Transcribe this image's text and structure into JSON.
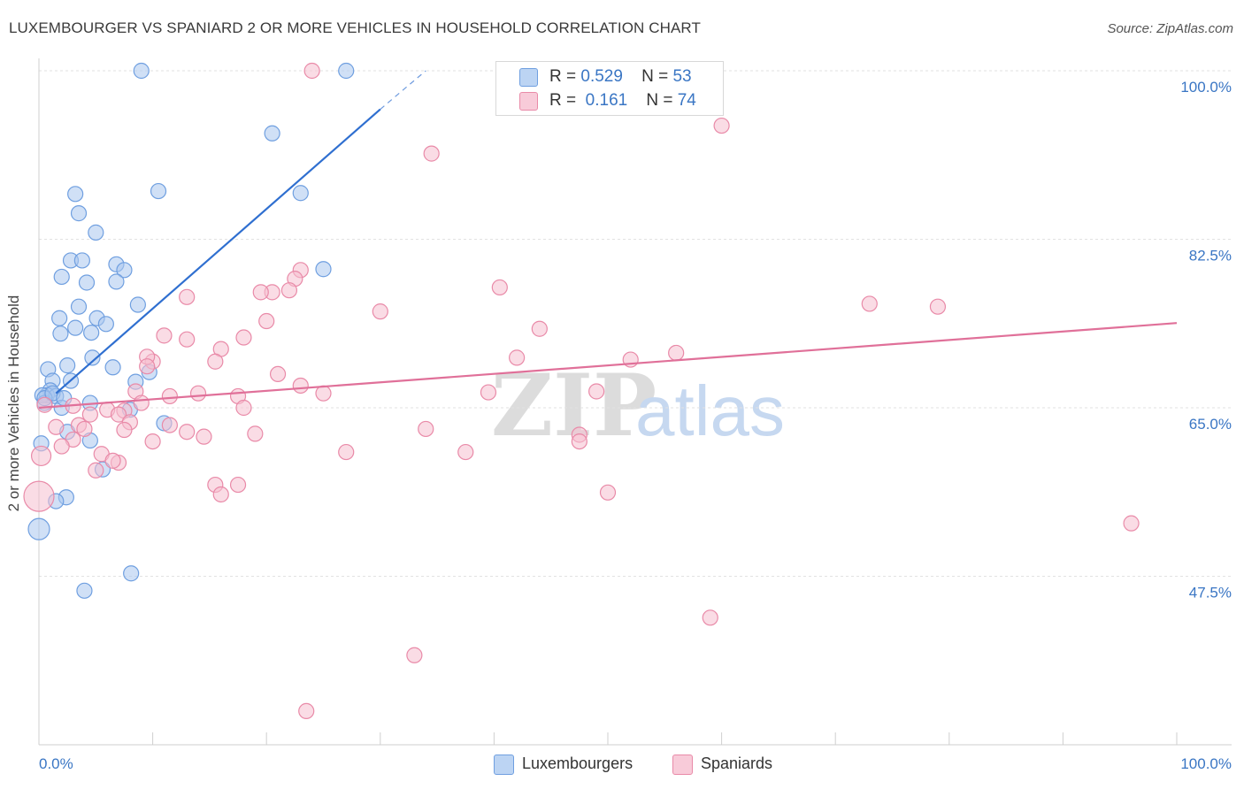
{
  "chart_data": {
    "type": "scatter",
    "title": "LUXEMBOURGER VS SPANIARD 2 OR MORE VEHICLES IN HOUSEHOLD CORRELATION CHART",
    "source": "Source: ZipAtlas.com",
    "xlabel": "",
    "ylabel": "2 or more Vehicles in Household",
    "xlim": [
      0,
      100
    ],
    "ylim": [
      30,
      100
    ],
    "x_tick_labels": [
      "0.0%",
      "100.0%"
    ],
    "y_ticks": [
      {
        "value": 100.0,
        "label": "100.0%"
      },
      {
        "value": 82.5,
        "label": "82.5%"
      },
      {
        "value": 65.0,
        "label": "65.0%"
      },
      {
        "value": 47.5,
        "label": "47.5%"
      }
    ],
    "grid": true,
    "watermark": "ZIPatlas",
    "legend": {
      "position": "top-center",
      "entries": [
        {
          "r_label": "R =",
          "r": "0.529",
          "n_label": "N =",
          "n": "53"
        },
        {
          "r_label": "R =",
          "r": "0.161",
          "n_label": "N =",
          "n": "74"
        }
      ]
    },
    "series": [
      {
        "name": "Luxembourgers",
        "color": "#6f9fe0",
        "fill": "#a9c6ef",
        "line_color": "#2f6fd0",
        "trend": {
          "x": [
            1.5,
            30.0
          ],
          "y": [
            66.5,
            96.0
          ],
          "dash_to": [
            34.0,
            100.0
          ]
        },
        "points": [
          [
            9.0,
            100
          ],
          [
            27.0,
            100
          ],
          [
            20.5,
            93.5
          ],
          [
            10.5,
            87.5
          ],
          [
            23.0,
            87.3
          ],
          [
            3.2,
            87.2
          ],
          [
            3.5,
            85.2
          ],
          [
            5.0,
            83.2
          ],
          [
            2.8,
            80.3
          ],
          [
            3.8,
            80.3
          ],
          [
            6.8,
            79.9
          ],
          [
            7.5,
            79.3
          ],
          [
            25.0,
            79.4
          ],
          [
            2.0,
            78.6
          ],
          [
            4.2,
            78.0
          ],
          [
            6.8,
            78.1
          ],
          [
            8.7,
            75.7
          ],
          [
            3.5,
            75.5
          ],
          [
            1.8,
            74.3
          ],
          [
            5.1,
            74.3
          ],
          [
            3.2,
            73.3
          ],
          [
            5.9,
            73.7
          ],
          [
            1.9,
            72.7
          ],
          [
            4.6,
            72.8
          ],
          [
            4.7,
            70.2
          ],
          [
            2.5,
            69.4
          ],
          [
            6.5,
            69.2
          ],
          [
            0.8,
            69.0
          ],
          [
            9.7,
            68.7
          ],
          [
            1.2,
            67.8
          ],
          [
            2.8,
            67.8
          ],
          [
            8.5,
            67.7
          ],
          [
            1.0,
            66.8
          ],
          [
            0.7,
            66.3
          ],
          [
            0.3,
            66.3
          ],
          [
            1.5,
            66.2
          ],
          [
            0.5,
            65.5
          ],
          [
            4.5,
            65.5
          ],
          [
            2.0,
            65.0
          ],
          [
            8.0,
            64.8
          ],
          [
            11.0,
            63.4
          ],
          [
            2.5,
            62.5
          ],
          [
            4.5,
            61.6
          ],
          [
            0.2,
            61.3
          ],
          [
            5.6,
            58.6
          ],
          [
            2.4,
            55.7
          ],
          [
            1.5,
            55.3
          ],
          [
            0.0,
            52.4
          ],
          [
            8.1,
            47.8
          ],
          [
            4.0,
            46.0
          ],
          [
            0.5,
            66.0
          ],
          [
            1.2,
            66.5
          ],
          [
            2.2,
            66.0
          ]
        ]
      },
      {
        "name": "Spaniards",
        "color": "#e98aa8",
        "fill": "#f5c0d0",
        "line_color": "#e07099",
        "trend": {
          "x": [
            0.0,
            100.0
          ],
          "y": [
            65.0,
            73.8
          ]
        },
        "points": [
          [
            24.0,
            100
          ],
          [
            60.0,
            94.3
          ],
          [
            34.5,
            91.4
          ],
          [
            23.0,
            79.3
          ],
          [
            22.5,
            78.4
          ],
          [
            20.5,
            77.0
          ],
          [
            22.0,
            77.2
          ],
          [
            19.5,
            77.0
          ],
          [
            40.5,
            77.5
          ],
          [
            13.0,
            76.5
          ],
          [
            73.0,
            75.8
          ],
          [
            79.0,
            75.5
          ],
          [
            30.0,
            75.0
          ],
          [
            20.0,
            74.0
          ],
          [
            44.0,
            73.2
          ],
          [
            11.0,
            72.5
          ],
          [
            18.0,
            72.3
          ],
          [
            13.0,
            72.1
          ],
          [
            16.0,
            71.1
          ],
          [
            42.0,
            70.2
          ],
          [
            52.0,
            70.0
          ],
          [
            56.0,
            70.7
          ],
          [
            15.5,
            69.8
          ],
          [
            10.0,
            69.8
          ],
          [
            9.5,
            70.3
          ],
          [
            9.5,
            69.3
          ],
          [
            21.0,
            68.5
          ],
          [
            23.0,
            67.3
          ],
          [
            8.5,
            66.7
          ],
          [
            11.5,
            66.2
          ],
          [
            14.0,
            66.5
          ],
          [
            17.5,
            66.2
          ],
          [
            25.0,
            66.5
          ],
          [
            39.5,
            66.6
          ],
          [
            49.0,
            66.7
          ],
          [
            7.5,
            64.7
          ],
          [
            9.0,
            65.5
          ],
          [
            0.5,
            65.3
          ],
          [
            3.0,
            65.2
          ],
          [
            6.0,
            64.8
          ],
          [
            4.5,
            64.3
          ],
          [
            18.0,
            65.0
          ],
          [
            7.0,
            64.3
          ],
          [
            8.0,
            63.5
          ],
          [
            11.5,
            63.2
          ],
          [
            1.5,
            63.0
          ],
          [
            3.5,
            63.2
          ],
          [
            4.0,
            62.8
          ],
          [
            13.0,
            62.5
          ],
          [
            7.5,
            62.7
          ],
          [
            34.0,
            62.8
          ],
          [
            47.5,
            62.2
          ],
          [
            14.5,
            62.0
          ],
          [
            19.0,
            62.3
          ],
          [
            3.0,
            61.7
          ],
          [
            10.0,
            61.5
          ],
          [
            47.5,
            61.5
          ],
          [
            2.0,
            61.0
          ],
          [
            0.2,
            60.0
          ],
          [
            27.0,
            60.4
          ],
          [
            37.5,
            60.4
          ],
          [
            5.5,
            60.2
          ],
          [
            7.0,
            59.3
          ],
          [
            5.0,
            58.5
          ],
          [
            15.5,
            57.0
          ],
          [
            17.5,
            57.0
          ],
          [
            16.0,
            56.0
          ],
          [
            50.0,
            56.2
          ],
          [
            0.0,
            55.8
          ],
          [
            96.0,
            53.0
          ],
          [
            59.0,
            43.2
          ],
          [
            33.0,
            39.3
          ],
          [
            23.5,
            33.5
          ],
          [
            6.5,
            59.5
          ]
        ]
      }
    ]
  }
}
